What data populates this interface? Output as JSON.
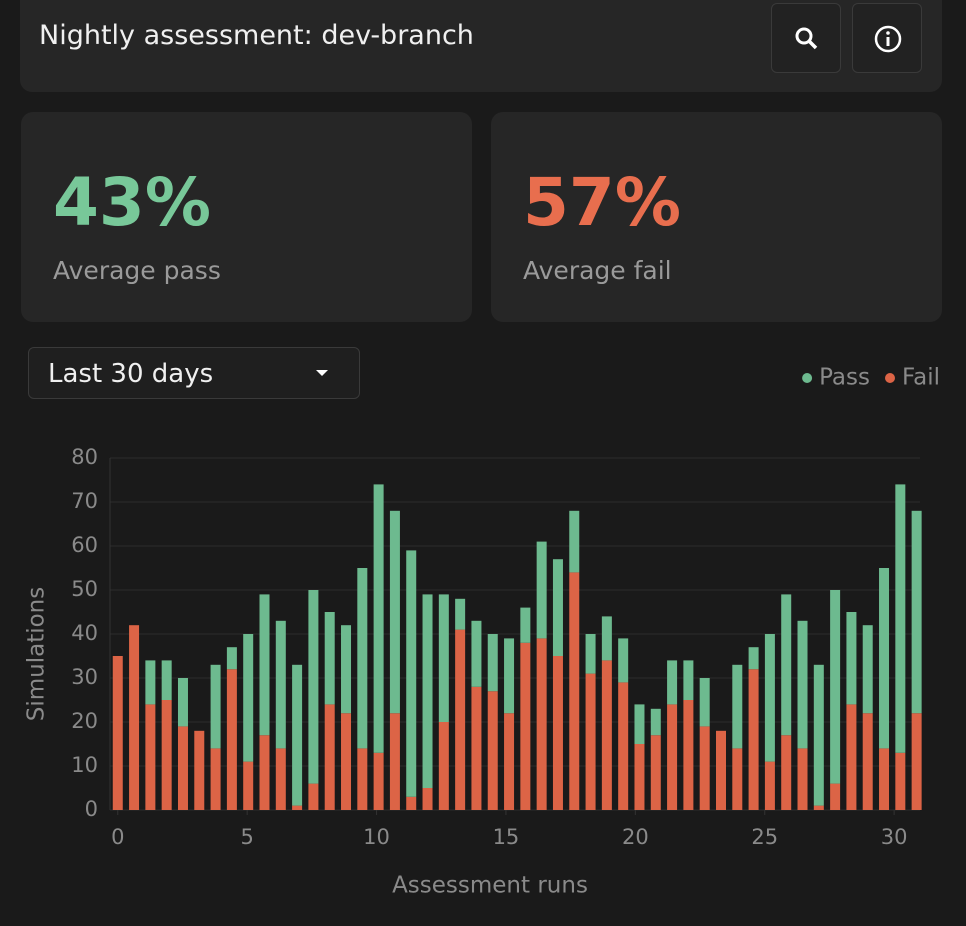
{
  "header": {
    "title": "Nightly assessment: dev-branch"
  },
  "stats": [
    {
      "value": "43%",
      "label": "Average pass"
    },
    {
      "value": "57%",
      "label": "Average fail"
    }
  ],
  "dropdown": {
    "label": "Last 30 days"
  },
  "chart_data": {
    "type": "bar",
    "stacked": true,
    "x_label": "Assessment runs",
    "y_label": "Simulations",
    "x": [
      0,
      0.63,
      1.26,
      1.89,
      2.52,
      3.15,
      3.78,
      4.41,
      5.04,
      5.67,
      6.3,
      6.93,
      7.56,
      8.19,
      8.82,
      9.45,
      10.08,
      10.71,
      11.34,
      11.97,
      12.6,
      13.23,
      13.86,
      14.49,
      15.12,
      15.75,
      16.38,
      17.01,
      17.64,
      18.27,
      18.9,
      19.53,
      20.16,
      20.79,
      21.42,
      22.05,
      22.68,
      23.31,
      23.94,
      24.57,
      25.2,
      25.83,
      26.46,
      27.09,
      27.72,
      28.35,
      28.98,
      29.61,
      30.24,
      30.87
    ],
    "series": [
      {
        "name": "Pass",
        "color": "#6dba8f",
        "values": [
          0,
          0,
          10,
          9,
          11,
          0,
          19,
          5,
          29,
          32,
          29,
          32,
          44,
          21,
          20,
          41,
          61,
          46,
          56,
          44,
          29,
          7,
          15,
          13,
          17,
          8,
          22,
          22,
          14,
          9,
          10,
          10,
          9,
          6,
          10,
          9,
          11,
          0,
          19,
          5,
          29,
          32,
          29,
          32,
          44,
          21,
          20,
          41,
          61,
          46
        ]
      },
      {
        "name": "Fail",
        "color": "#dc6446",
        "values": [
          35,
          42,
          24,
          25,
          19,
          18,
          14,
          32,
          11,
          17,
          14,
          1,
          6,
          24,
          22,
          14,
          13,
          22,
          3,
          5,
          20,
          41,
          28,
          27,
          22,
          38,
          39,
          35,
          54,
          31,
          34,
          29,
          15,
          17,
          24,
          25,
          19,
          18,
          14,
          32,
          11,
          17,
          14,
          1,
          6,
          24,
          22,
          14,
          13,
          22
        ]
      }
    ],
    "xlim": [
      -0.3,
      31
    ],
    "xticks": [
      0,
      5,
      10,
      15,
      20,
      25,
      30
    ],
    "ylim": [
      0,
      80
    ],
    "yticks": [
      0,
      10,
      20,
      30,
      40,
      50,
      60,
      70,
      80
    ],
    "grid": true,
    "legend": "top-right"
  }
}
